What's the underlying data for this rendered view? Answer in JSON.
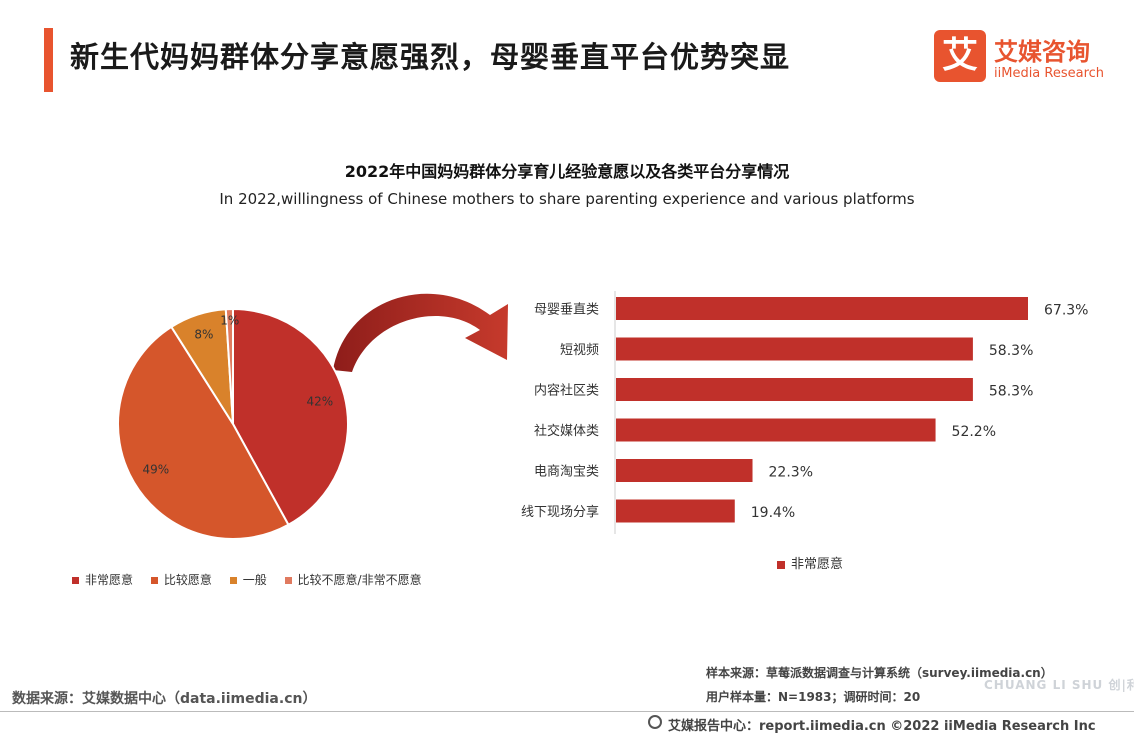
{
  "header": {
    "title": "新生代妈妈群体分享意愿强烈，母婴垂直平台优势突显",
    "logo_mark": "艾",
    "logo_cn": "艾媒咨询",
    "logo_en": "iiMedia Research"
  },
  "colors": {
    "accent": "#e8542f",
    "very_willing": "#c0302a",
    "relatively_willing": "#d5562b",
    "neutral": "#d9822b",
    "unwilling": "#e07a5f"
  },
  "chart_data": [
    {
      "type": "pie",
      "title": "2022年中国妈妈群体分享育儿经验意愿以及各类平台分享情况",
      "subtitle": "In 2022,willingness of Chinese mothers to share parenting experience and various platforms",
      "slices": [
        {
          "label": "非常愿意",
          "value": 42,
          "display": "42%"
        },
        {
          "label": "比较愿意",
          "value": 49,
          "display": "49%"
        },
        {
          "label": "一般",
          "value": 8,
          "display": "8%"
        },
        {
          "label": "比较不愿意/非常不愿意",
          "value": 1,
          "display": "1%"
        }
      ],
      "legend_position": "bottom"
    },
    {
      "type": "bar",
      "orientation": "horizontal",
      "categories": [
        "母婴垂直类",
        "短视频",
        "内容社区类",
        "社交媒体类",
        "电商淘宝类",
        "线下现场分享"
      ],
      "series": [
        {
          "name": "非常愿意",
          "values": [
            67.3,
            58.3,
            58.3,
            52.2,
            22.3,
            19.4
          ],
          "labels": [
            "67.3%",
            "58.3%",
            "58.3%",
            "52.2%",
            "22.3%",
            "19.4%"
          ]
        }
      ],
      "xlim": [
        0,
        67.3
      ],
      "legend_position": "bottom"
    }
  ],
  "sources": {
    "data_source": "数据来源：艾媒数据中心（data.iimedia.cn）",
    "sample_source": "样本来源：草莓派数据调查与计算系统（survey.iimedia.cn）",
    "sample_size": "用户样本量：N=1983；调研时间：20",
    "footer": "艾媒报告中心：report.iimedia.cn  ©2022  iiMedia Research Inc"
  },
  "watermark": "CHUANG LI SHU 创|利|树"
}
